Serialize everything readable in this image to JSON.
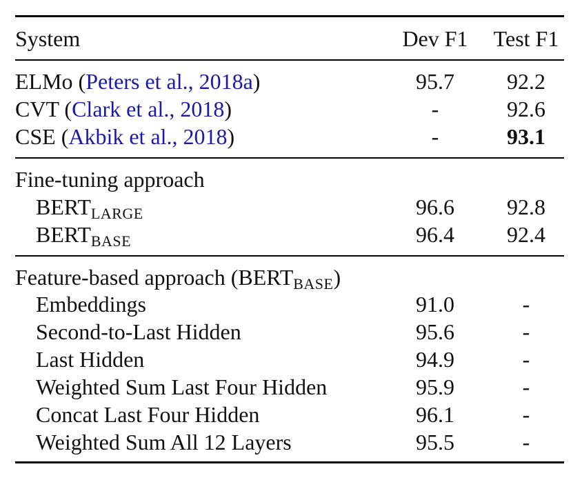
{
  "header": {
    "system": "System",
    "dev_f1": "Dev F1",
    "test_f1": "Test F1"
  },
  "baselines": [
    {
      "name": "ELMo",
      "open": "(",
      "cite": "Peters et al., 2018a",
      "close": ")",
      "dev": "95.7",
      "test": "92.2",
      "test_bold": false
    },
    {
      "name": "CVT",
      "open": "(",
      "cite": "Clark et al., 2018",
      "close": ")",
      "dev": "-",
      "test": "92.6",
      "test_bold": false
    },
    {
      "name": "CSE",
      "open": "(",
      "cite": "Akbik et al., 2018",
      "close": ")",
      "dev": "-",
      "test": "93.1",
      "test_bold": true
    }
  ],
  "fine_tuning": {
    "title": "Fine-tuning approach",
    "rows": [
      {
        "base": "BERT",
        "sub": "LARGE",
        "dev": "96.6",
        "test": "92.8"
      },
      {
        "base": "BERT",
        "sub": "BASE",
        "dev": "96.4",
        "test": "92.4"
      }
    ]
  },
  "feature_based": {
    "title_pre": "Feature-based approach (BERT",
    "title_sub": "BASE",
    "title_post": ")",
    "rows": [
      {
        "name": "Embeddings",
        "dev": "91.0",
        "test": "-"
      },
      {
        "name": "Second-to-Last Hidden",
        "dev": "95.6",
        "test": "-"
      },
      {
        "name": "Last Hidden",
        "dev": "94.9",
        "test": "-"
      },
      {
        "name": "Weighted Sum Last Four Hidden",
        "dev": "95.9",
        "test": "-"
      },
      {
        "name": "Concat Last Four Hidden",
        "dev": "96.1",
        "test": "-"
      },
      {
        "name": "Weighted Sum All 12 Layers",
        "dev": "95.5",
        "test": "-"
      }
    ]
  },
  "colors": {
    "citation": "#1a1aa6",
    "text": "#111111",
    "rule": "#000000"
  }
}
